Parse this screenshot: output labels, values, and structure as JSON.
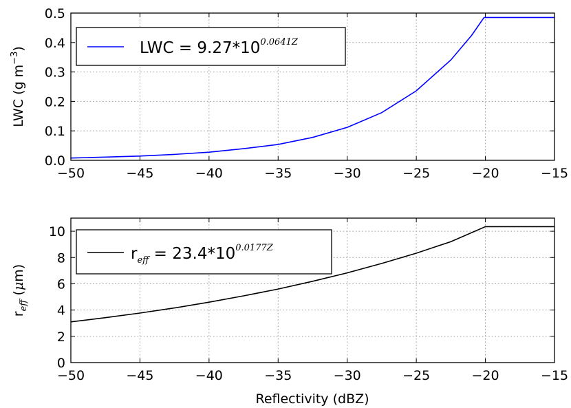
{
  "chart_data": [
    {
      "type": "line",
      "ylabel": {
        "base": "LWC (g m",
        "sup": "−3",
        "close": ")"
      },
      "xlim": [
        -50,
        -15
      ],
      "ylim": [
        0,
        0.5
      ],
      "xticks": [
        -50,
        -45,
        -40,
        -35,
        -30,
        -25,
        -20,
        -15
      ],
      "xtick_labels": [
        "−50",
        "−45",
        "−40",
        "−35",
        "−30",
        "−25",
        "−20",
        "−15"
      ],
      "yticks": [
        0,
        0.1,
        0.2,
        0.3,
        0.4,
        0.5
      ],
      "ytick_labels": [
        "0.0",
        "0.1",
        "0.2",
        "0.3",
        "0.4",
        "0.5"
      ],
      "grid": true,
      "legend": {
        "placement": "upper-left",
        "main": "LWC = 9.27*10",
        "sup": "0.0641Z"
      },
      "series": [
        {
          "color": "#0000ff",
          "x": [
            -50,
            -47.5,
            -45,
            -42.5,
            -40,
            -37.5,
            -35,
            -32.5,
            -30,
            -27.5,
            -25,
            -22.5,
            -21,
            -20.1,
            -20,
            -15
          ],
          "y": [
            0.0077,
            0.011,
            0.0144,
            0.0201,
            0.0275,
            0.0396,
            0.0539,
            0.0778,
            0.112,
            0.162,
            0.236,
            0.341,
            0.424,
            0.485,
            0.485,
            0.485
          ]
        }
      ]
    },
    {
      "type": "line",
      "xlabel": "Reflectivity (dBZ)",
      "ylabel": {
        "base": "r",
        "sub": "eff",
        "unit_open": " (",
        "mu": "μ",
        "unit_close": "m)"
      },
      "xlim": [
        -50,
        -15
      ],
      "ylim": [
        0,
        11
      ],
      "xticks": [
        -50,
        -45,
        -40,
        -35,
        -30,
        -25,
        -20,
        -15
      ],
      "xtick_labels": [
        "−50",
        "−45",
        "−40",
        "−35",
        "−30",
        "−25",
        "−20",
        "−15"
      ],
      "yticks": [
        0,
        2,
        4,
        6,
        8,
        10
      ],
      "ytick_labels": [
        "0",
        "2",
        "4",
        "6",
        "8",
        "10"
      ],
      "grid": true,
      "legend": {
        "placement": "upper-left",
        "base": "r",
        "sub": "eff",
        "main": " = 23.4*10",
        "sup": "0.0177Z"
      },
      "series": [
        {
          "color": "#000000",
          "x": [
            -50,
            -47.5,
            -45,
            -42.5,
            -40,
            -37.5,
            -35,
            -32.5,
            -30,
            -27.5,
            -25,
            -22.5,
            -20,
            -15
          ],
          "y": [
            3.1,
            3.42,
            3.77,
            4.16,
            4.6,
            5.08,
            5.6,
            6.19,
            6.83,
            7.55,
            8.33,
            9.21,
            10.35,
            10.35
          ]
        }
      ]
    }
  ]
}
